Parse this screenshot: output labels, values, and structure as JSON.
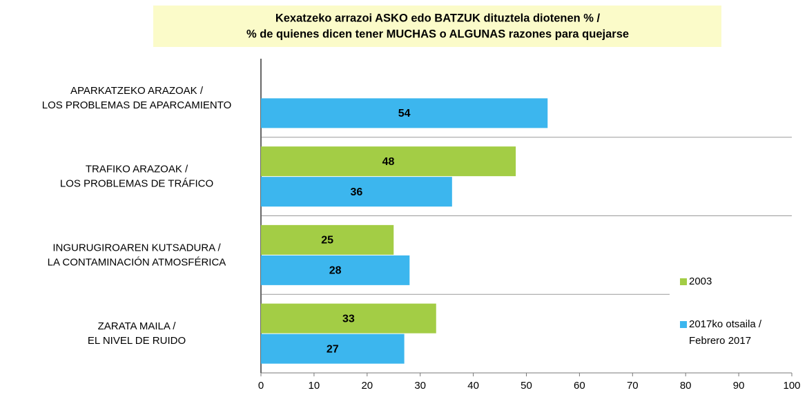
{
  "chart_data": {
    "type": "barh",
    "title": [
      "Kexatzeko arrazoi ASKO edo BATZUK dituztela diotenen % /",
      "% de quienes dicen tener MUCHAS o ALGUNAS  razones para quejarse"
    ],
    "categories": [
      [
        "APARKATZEKO ARAZOAK /",
        "LOS PROBLEMAS DE APARCAMIENTO"
      ],
      [
        "TRAFIKO ARAZOAK /",
        "LOS PROBLEMAS DE TRÁFICO"
      ],
      [
        "INGURUGIROAREN KUTSADURA /",
        "LA CONTAMINACIÓN ATMOSFÉRICA"
      ],
      [
        "ZARATA MAILA /",
        "EL NIVEL DE RUIDO"
      ]
    ],
    "series": [
      {
        "name": [
          "2003"
        ],
        "color": "#a3cd45",
        "values": [
          null,
          48,
          25,
          33
        ]
      },
      {
        "name": [
          "2017ko otsaila /",
          "Febrero 2017"
        ],
        "color": "#3cb6ee",
        "values": [
          54,
          36,
          28,
          27
        ]
      }
    ],
    "xlim": [
      0,
      100
    ],
    "xticks": [
      0,
      10,
      20,
      30,
      40,
      50,
      60,
      70,
      80,
      90,
      100
    ]
  }
}
